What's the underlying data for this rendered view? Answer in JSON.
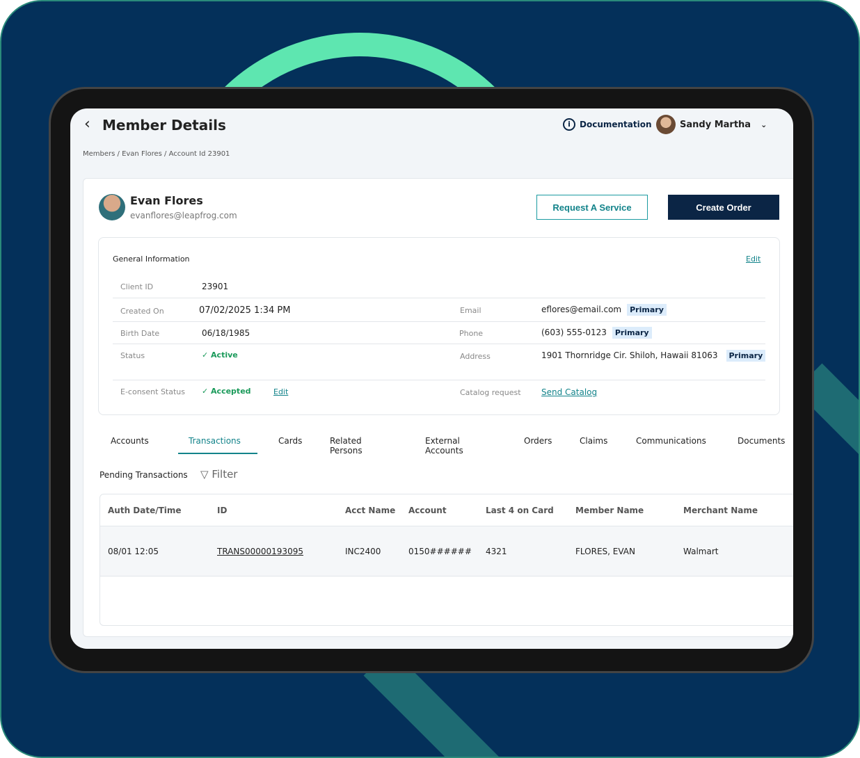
{
  "header": {
    "title": "Member Details",
    "breadcrumb": "Members / Evan Flores / Account Id 23901",
    "documentation": "Documentation",
    "user": "Sandy Martha"
  },
  "member": {
    "name": "Evan Flores",
    "email": "evanflores@leapfrog.com",
    "request_service": "Request A Service",
    "create_order": "Create Order"
  },
  "general": {
    "title": "General Information",
    "edit": "Edit",
    "client_id_label": "Client ID",
    "client_id": "23901",
    "created_label": "Created On",
    "created": "07/02/2025 1:34 PM",
    "birth_label": "Birth Date",
    "birth": "06/18/1985",
    "status_label": "Status",
    "status": "Active",
    "econsent_label": "E-consent Status",
    "econsent": "Accepted",
    "econsent_edit": "Edit",
    "email_label": "Email",
    "email": "eflores@email.com",
    "phone_label": "Phone",
    "phone": "(603) 555-0123",
    "address_label": "Address",
    "address": "1901 Thornridge Cir. Shiloh, Hawaii 81063",
    "primary": "Primary",
    "catalog_label": "Catalog request",
    "catalog": "Send Catalog"
  },
  "tabs": [
    "Accounts",
    "Transactions",
    "Cards",
    "Related Persons",
    "External Accounts",
    "Orders",
    "Claims",
    "Communications",
    "Documents"
  ],
  "active_tab": "Transactions",
  "transactions": {
    "title": "Pending Transactions",
    "filter": "Filter",
    "columns": [
      "Auth Date/Time",
      "ID",
      "Acct Name",
      "Account",
      "Last 4 on Card",
      "Member Name",
      "Merchant Name"
    ],
    "rows": [
      [
        "08/01 12:05",
        "TRANS00000193095",
        "INC2400",
        "0150######",
        "4321",
        "FLORES, EVAN",
        "Walmart"
      ]
    ]
  },
  "colors": {
    "accent": "#12838a",
    "primary": "#0b2545",
    "background": "#04305a",
    "arc": "#5ee6b0"
  }
}
